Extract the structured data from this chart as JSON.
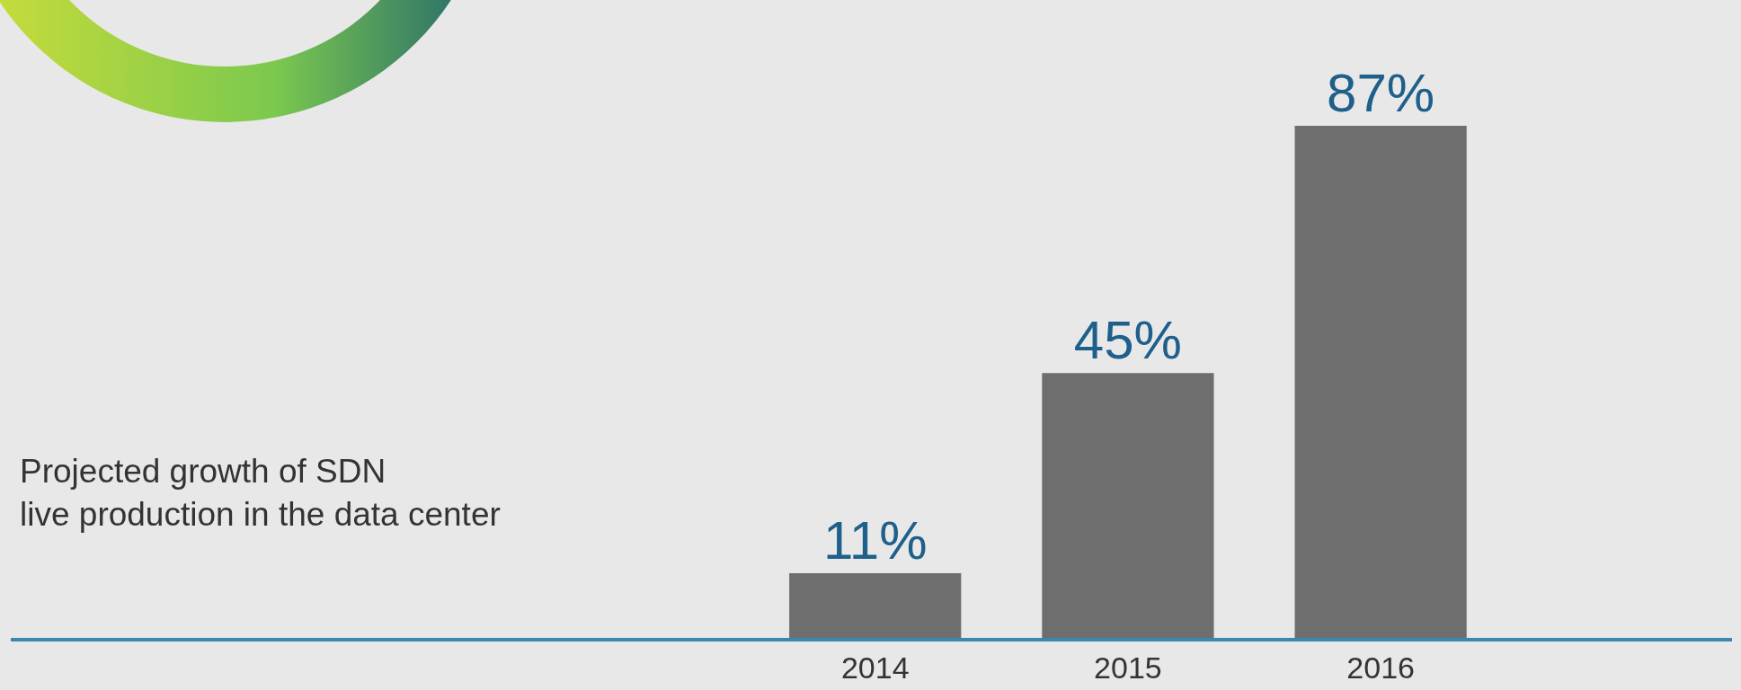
{
  "chart_data": {
    "type": "bar",
    "title": "Projected growth of SDN\nlive production in the data center",
    "categories": [
      "2014",
      "2015",
      "2016"
    ],
    "values": [
      11,
      45,
      87
    ],
    "value_labels": [
      "11%",
      "45%",
      "87%"
    ],
    "color": "#6e6e6e"
  }
}
